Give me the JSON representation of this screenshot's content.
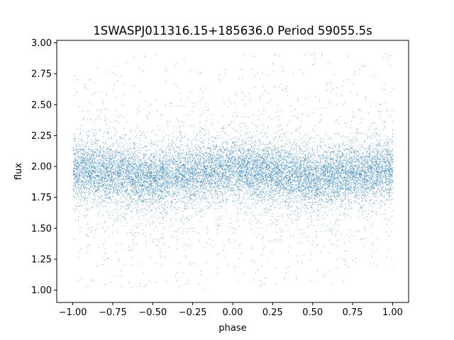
{
  "chart_data": {
    "type": "scatter",
    "title": "1SWASPJ011316.15+185636.0 Period 59055.5s",
    "xlabel": "phase",
    "ylabel": "flux",
    "xlim": [
      -1.1,
      1.1
    ],
    "ylim": [
      0.9,
      3.02
    ],
    "xticks": [
      -1.0,
      -0.75,
      -0.5,
      -0.25,
      0.0,
      0.25,
      0.5,
      0.75,
      1.0
    ],
    "xtick_labels": [
      "−1.00",
      "−0.75",
      "−0.50",
      "−0.25",
      "0.00",
      "0.25",
      "0.50",
      "0.75",
      "1.00"
    ],
    "yticks": [
      1.0,
      1.25,
      1.5,
      1.75,
      2.0,
      2.25,
      2.5,
      2.75,
      3.0
    ],
    "ytick_labels": [
      "1.00",
      "1.25",
      "1.50",
      "1.75",
      "2.00",
      "2.25",
      "2.50",
      "2.75",
      "3.00"
    ],
    "grid": false,
    "point_color": "#1f77b4",
    "x_range_of_points": [
      -1.0,
      1.0
    ],
    "y_range_of_points": [
      1.0,
      2.92
    ],
    "band_center_by_phase": [
      {
        "x": -1.0,
        "y": 1.98
      },
      {
        "x": -0.75,
        "y": 1.95
      },
      {
        "x": -0.5,
        "y": 1.9
      },
      {
        "x": -0.25,
        "y": 1.95
      },
      {
        "x": 0.0,
        "y": 1.98
      },
      {
        "x": 0.25,
        "y": 1.95
      },
      {
        "x": 0.5,
        "y": 1.9
      },
      {
        "x": 0.75,
        "y": 1.95
      },
      {
        "x": 1.0,
        "y": 1.98
      }
    ],
    "core_spread": 0.12
  }
}
